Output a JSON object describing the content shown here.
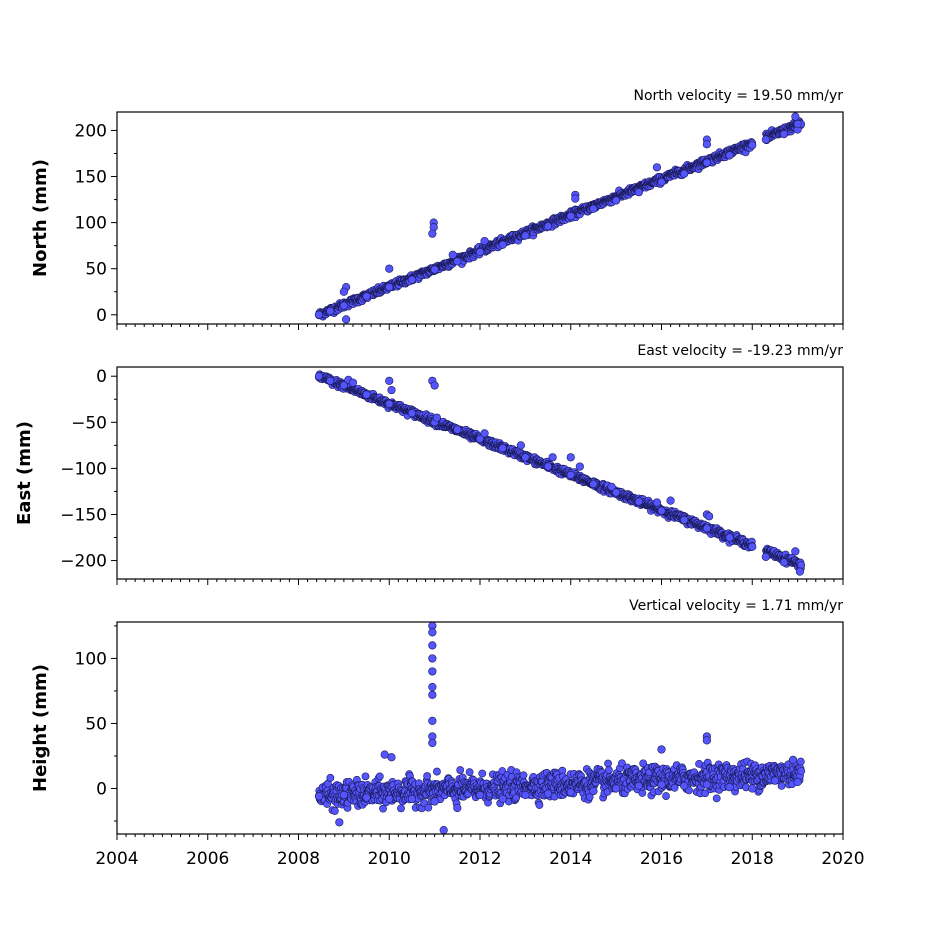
{
  "chart_data": [
    {
      "type": "scatter",
      "title": "North velocity = 19.50 mm/yr",
      "ylabel": "North (mm)",
      "xlim": [
        2004,
        2020
      ],
      "ylim": [
        -10,
        220
      ],
      "yticks": [
        0,
        50,
        100,
        150,
        200
      ],
      "grid": false,
      "marker_color": "#5555ff",
      "marker_edge": "#1a1a55",
      "trend": {
        "start_year": 2008.45,
        "end_year": 2019.08,
        "start_value": 0,
        "slope_per_year": 19.5
      },
      "series": [
        {
          "x": [
            2008.45,
            2008.7,
            2009.0,
            2009.5,
            2010.0,
            2010.5,
            2011.0,
            2011.5,
            2012.0,
            2012.5,
            2013.0,
            2013.5,
            2014.0,
            2014.5,
            2015.0,
            2015.5,
            2016.0,
            2016.5,
            2017.0,
            2017.5,
            2018.0,
            2018.3,
            2018.7,
            2019.0
          ],
          "y": [
            0,
            4,
            10,
            20,
            30,
            38,
            49,
            58,
            68,
            76,
            86,
            96,
            107,
            115,
            124,
            133,
            144,
            153,
            165,
            173,
            184,
            190,
            196,
            201
          ]
        },
        {
          "x": [
            2009.05,
            2009.05,
            2009.0,
            2010.0,
            2010.98,
            2010.98,
            2010.95,
            2011.4,
            2012.1,
            2014.1,
            2014.1,
            2015.9,
            2017.0,
            2017.0,
            2018.95,
            2019.0
          ],
          "y": [
            -5,
            30,
            25,
            50,
            100,
            95,
            88,
            65,
            80,
            130,
            126,
            160,
            190,
            185,
            215,
            207
          ]
        }
      ]
    },
    {
      "type": "scatter",
      "title": "East velocity = -19.23 mm/yr",
      "ylabel": "East (mm)",
      "xlim": [
        2004,
        2020
      ],
      "ylim": [
        -220,
        10
      ],
      "yticks": [
        -200,
        -150,
        -100,
        -50,
        0
      ],
      "grid": false,
      "marker_color": "#5555ff",
      "marker_edge": "#1a1a55",
      "trend": {
        "start_year": 2008.45,
        "end_year": 2019.08,
        "start_value": 0,
        "slope_per_year": -19.23
      },
      "series": [
        {
          "x": [
            2008.45,
            2008.7,
            2009.0,
            2009.5,
            2010.0,
            2010.5,
            2011.0,
            2011.5,
            2012.0,
            2012.5,
            2013.0,
            2013.5,
            2014.0,
            2014.5,
            2015.0,
            2015.5,
            2016.0,
            2016.5,
            2017.0,
            2017.5,
            2018.0,
            2018.3,
            2018.7,
            2019.05
          ],
          "y": [
            0,
            -5,
            -10,
            -20,
            -30,
            -40,
            -50,
            -58,
            -68,
            -78,
            -88,
            -98,
            -107,
            -117,
            -126,
            -136,
            -146,
            -156,
            -165,
            -175,
            -185,
            -196,
            -202,
            -212
          ]
        },
        {
          "x": [
            2009.1,
            2009.2,
            2010.0,
            2010.05,
            2010.95,
            2011.0,
            2011.05,
            2012.1,
            2012.9,
            2013.6,
            2014.0,
            2014.2,
            2014.9,
            2015.9,
            2016.2,
            2017.0,
            2017.05,
            2018.95
          ],
          "y": [
            -4,
            -7,
            -5,
            -15,
            -5,
            -10,
            -45,
            -62,
            -75,
            -88,
            -88,
            -98,
            -120,
            -137,
            -135,
            -150,
            -152,
            -190
          ]
        }
      ]
    },
    {
      "type": "scatter",
      "title": "Vertical velocity = 1.71 mm/yr",
      "ylabel": "Height (mm)",
      "xlim": [
        2004,
        2020
      ],
      "ylim": [
        -35,
        128
      ],
      "yticks": [
        0,
        50,
        100
      ],
      "xticks": [
        2004,
        2006,
        2008,
        2010,
        2012,
        2014,
        2016,
        2018,
        2020
      ],
      "grid": false,
      "marker_color": "#5555ff",
      "marker_edge": "#1a1a55",
      "trend": {
        "start_year": 2008.45,
        "end_year": 2019.08,
        "start_value": -6,
        "slope_per_year": 1.71
      },
      "series": [
        {
          "x": [
            2008.45,
            2009.0,
            2009.5,
            2010.0,
            2010.5,
            2011.0,
            2011.5,
            2012.0,
            2012.5,
            2013.0,
            2013.5,
            2014.0,
            2014.5,
            2015.0,
            2015.5,
            2016.0,
            2016.5,
            2017.0,
            2017.5,
            2018.0,
            2018.5,
            2019.0
          ],
          "y": [
            -6,
            -5,
            -7,
            -8,
            -8,
            -10,
            -15,
            -5,
            -8,
            -5,
            -4,
            -3,
            -2,
            0,
            2,
            3,
            2,
            3,
            1,
            0,
            6,
            5
          ]
        },
        {
          "x": [
            2010.95,
            2010.95,
            2010.95,
            2010.95,
            2010.95,
            2010.95,
            2010.95,
            2010.95,
            2010.95,
            2010.95,
            2009.9,
            2010.05,
            2016.0,
            2017.0,
            2017.0,
            2018.9,
            2011.2,
            2008.9
          ],
          "y": [
            125,
            120,
            110,
            100,
            90,
            78,
            72,
            52,
            40,
            35,
            26,
            24,
            30,
            40,
            37,
            22,
            -32,
            -26
          ]
        }
      ]
    }
  ]
}
